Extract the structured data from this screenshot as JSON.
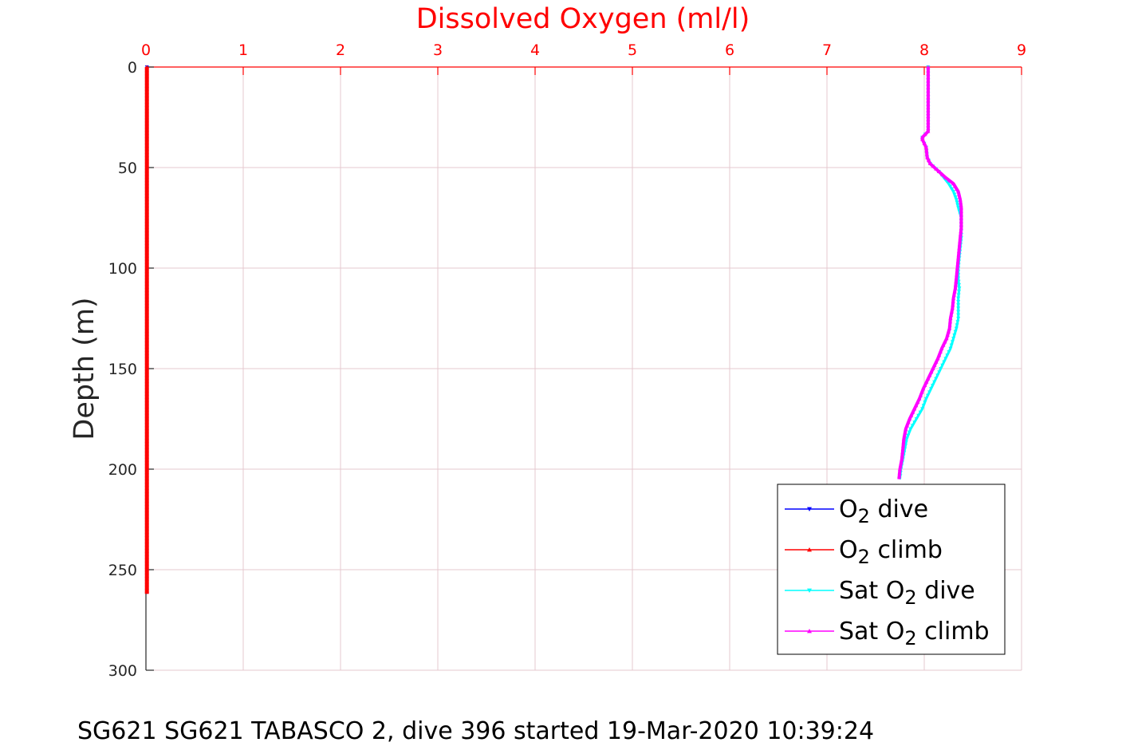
{
  "caption": "SG621 SG621 TABASCO 2, dive 396 started 19-Mar-2020 10:39:24",
  "chart_data": {
    "type": "line",
    "title": "Dissolved Oxygen (ml/l)",
    "xlabel": "",
    "ylabel": "Depth (m)",
    "xlim": [
      0,
      9
    ],
    "ylim": [
      0,
      300
    ],
    "y_reversed": true,
    "x_axis_position": "top",
    "x_ticks": [
      "0",
      "1",
      "2",
      "3",
      "4",
      "5",
      "6",
      "7",
      "8",
      "9"
    ],
    "y_ticks": [
      "0",
      "50",
      "100",
      "150",
      "200",
      "250",
      "300"
    ],
    "grid": true,
    "legend_position": "bottom-right",
    "colors": {
      "axis_top": "#ff0000",
      "axis_left": "#262626",
      "grid": "#e6c8cf",
      "o2_dive": "#0000ff",
      "o2_climb": "#ff0000",
      "sat_dive": "#00ffff",
      "sat_climb": "#ff00ff"
    },
    "series": [
      {
        "name": "O<sub>2</sub> dive",
        "key": "o2_dive",
        "marker": "down",
        "depth": [
          0,
          50,
          100,
          150,
          200,
          250,
          262
        ],
        "value": [
          0.01,
          0.01,
          0.01,
          0.01,
          0.01,
          0.01,
          0.01
        ]
      },
      {
        "name": "O<sub>2</sub> climb",
        "key": "o2_climb",
        "marker": "up",
        "depth": [
          0,
          50,
          100,
          150,
          200,
          250,
          262
        ],
        "value": [
          0.01,
          0.01,
          0.01,
          0.01,
          0.01,
          0.01,
          0.01
        ]
      },
      {
        "name": "Sat O<sub>2</sub> dive",
        "key": "sat_dive",
        "marker": "down",
        "depth": [
          0,
          10,
          20,
          32,
          35,
          36,
          38,
          40,
          45,
          48,
          52,
          55,
          58,
          62,
          66,
          70,
          75,
          80,
          85,
          90,
          95,
          100,
          105,
          110,
          115,
          120,
          125,
          130,
          135,
          140,
          145,
          150,
          155,
          160,
          165,
          170,
          175,
          180,
          185,
          190,
          195,
          200,
          205
        ],
        "value": [
          8.04,
          8.04,
          8.04,
          8.04,
          7.98,
          7.98,
          8.0,
          8.02,
          8.03,
          8.06,
          8.15,
          8.2,
          8.25,
          8.3,
          8.33,
          8.35,
          8.38,
          8.38,
          8.38,
          8.37,
          8.36,
          8.35,
          8.35,
          8.36,
          8.35,
          8.35,
          8.35,
          8.33,
          8.3,
          8.27,
          8.22,
          8.17,
          8.12,
          8.07,
          8.02,
          7.98,
          7.92,
          7.86,
          7.82,
          7.8,
          7.78,
          7.76,
          7.75
        ]
      },
      {
        "name": "Sat O<sub>2</sub> climb",
        "key": "sat_climb",
        "marker": "up",
        "depth": [
          0,
          10,
          20,
          32,
          35,
          36,
          38,
          40,
          45,
          48,
          52,
          55,
          58,
          62,
          66,
          70,
          75,
          80,
          85,
          90,
          95,
          100,
          105,
          110,
          115,
          120,
          125,
          130,
          135,
          140,
          145,
          150,
          155,
          160,
          165,
          170,
          175,
          180,
          185,
          190,
          195,
          200,
          205
        ],
        "value": [
          8.04,
          8.04,
          8.04,
          8.04,
          7.98,
          7.98,
          8.0,
          8.02,
          8.03,
          8.06,
          8.15,
          8.22,
          8.3,
          8.35,
          8.37,
          8.38,
          8.38,
          8.38,
          8.37,
          8.36,
          8.35,
          8.34,
          8.33,
          8.32,
          8.3,
          8.29,
          8.27,
          8.26,
          8.23,
          8.18,
          8.14,
          8.09,
          8.04,
          7.99,
          7.95,
          7.9,
          7.85,
          7.81,
          7.79,
          7.78,
          7.77,
          7.75,
          7.74
        ]
      }
    ]
  }
}
